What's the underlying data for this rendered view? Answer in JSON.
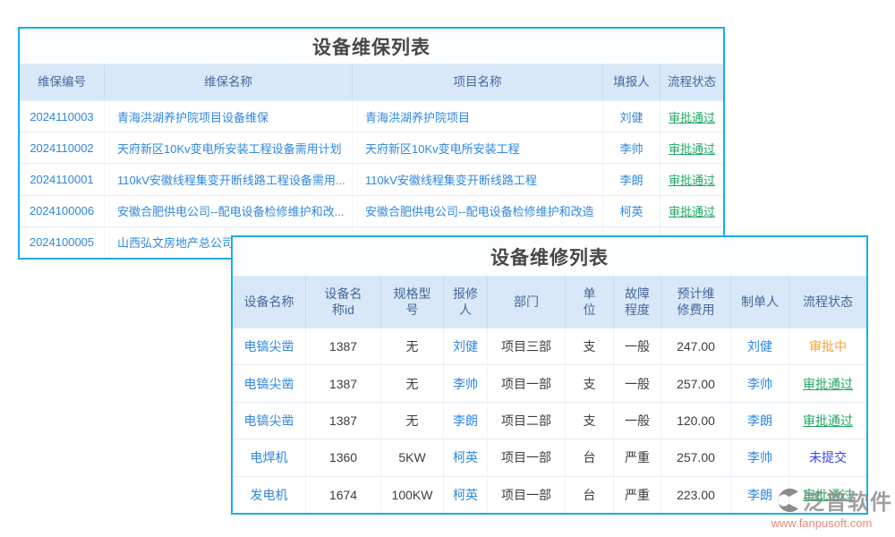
{
  "maintenance_table": {
    "title": "设备维保列表",
    "columns": [
      "维保编号",
      "维保名称",
      "项目名称",
      "填报人",
      "流程状态"
    ],
    "rows": [
      [
        "2024110003",
        "青海洪湖养护院项目设备维保",
        "青海洪湖养护院项目",
        "刘健",
        "审批通过"
      ],
      [
        "2024110002",
        "天府新区10Kv变电所安装工程设备需用计划",
        "天府新区10Kv变电所安装工程",
        "李帅",
        "审批通过"
      ],
      [
        "2024110001",
        "110kV安徽线程集变开断线路工程设备需用...",
        "110kV安徽线程集变开断线路工程",
        "李朗",
        "审批通过"
      ],
      [
        "2024100006",
        "安徽合肥供电公司--配电设备检修维护和改...",
        "安徽合肥供电公司--配电设备检修维护和改造",
        "柯英",
        "审批通过"
      ],
      [
        "2024100005",
        "山西弘文房地产总公司电...",
        "",
        "",
        ""
      ]
    ]
  },
  "repair_table": {
    "title": "设备维修列表",
    "columns": [
      "设备名称",
      "设备名\n称id",
      "规格型\n号",
      "报修\n人",
      "部门",
      "单\n位",
      "故障\n程度",
      "预计维\n修费用",
      "制单人",
      "流程状态"
    ],
    "rows": [
      [
        "电镐尖凿",
        "1387",
        "无",
        "刘健",
        "项目三部",
        "支",
        "一般",
        "247.00",
        "刘健",
        "审批中"
      ],
      [
        "电镐尖凿",
        "1387",
        "无",
        "李帅",
        "项目一部",
        "支",
        "一般",
        "257.00",
        "李帅",
        "审批通过"
      ],
      [
        "电镐尖凿",
        "1387",
        "无",
        "李朗",
        "项目二部",
        "支",
        "一般",
        "120.00",
        "李朗",
        "审批通过"
      ],
      [
        "电焊机",
        "1360",
        "5KW",
        "柯英",
        "项目一部",
        "台",
        "严重",
        "257.00",
        "李帅",
        "未提交"
      ],
      [
        "发电机",
        "1674",
        "100KW",
        "柯英",
        "项目一部",
        "台",
        "严重",
        "223.00",
        "李朗",
        "审批通过"
      ]
    ]
  },
  "status_styles": {
    "审批通过": {
      "color": "#1ea763",
      "underline": true
    },
    "审批中": {
      "color": "#f2a231",
      "underline": false
    },
    "未提交": {
      "color": "#3542ef",
      "underline": false
    }
  },
  "colors": {
    "accent_border": "#18ade8",
    "header_bg": "#d8e8f8",
    "header_text": "#47689a",
    "link": "#2e87e0",
    "text": "#3c3c3c",
    "status_approved": "#1ea763",
    "status_pending": "#f2a231",
    "status_unsubmitted": "#3542ef",
    "watermark_brand": "#8a8a8a",
    "watermark_url": "#e97a6e"
  },
  "watermark": {
    "brand": "泛普软件",
    "url": "www.fanpusoft.com"
  }
}
